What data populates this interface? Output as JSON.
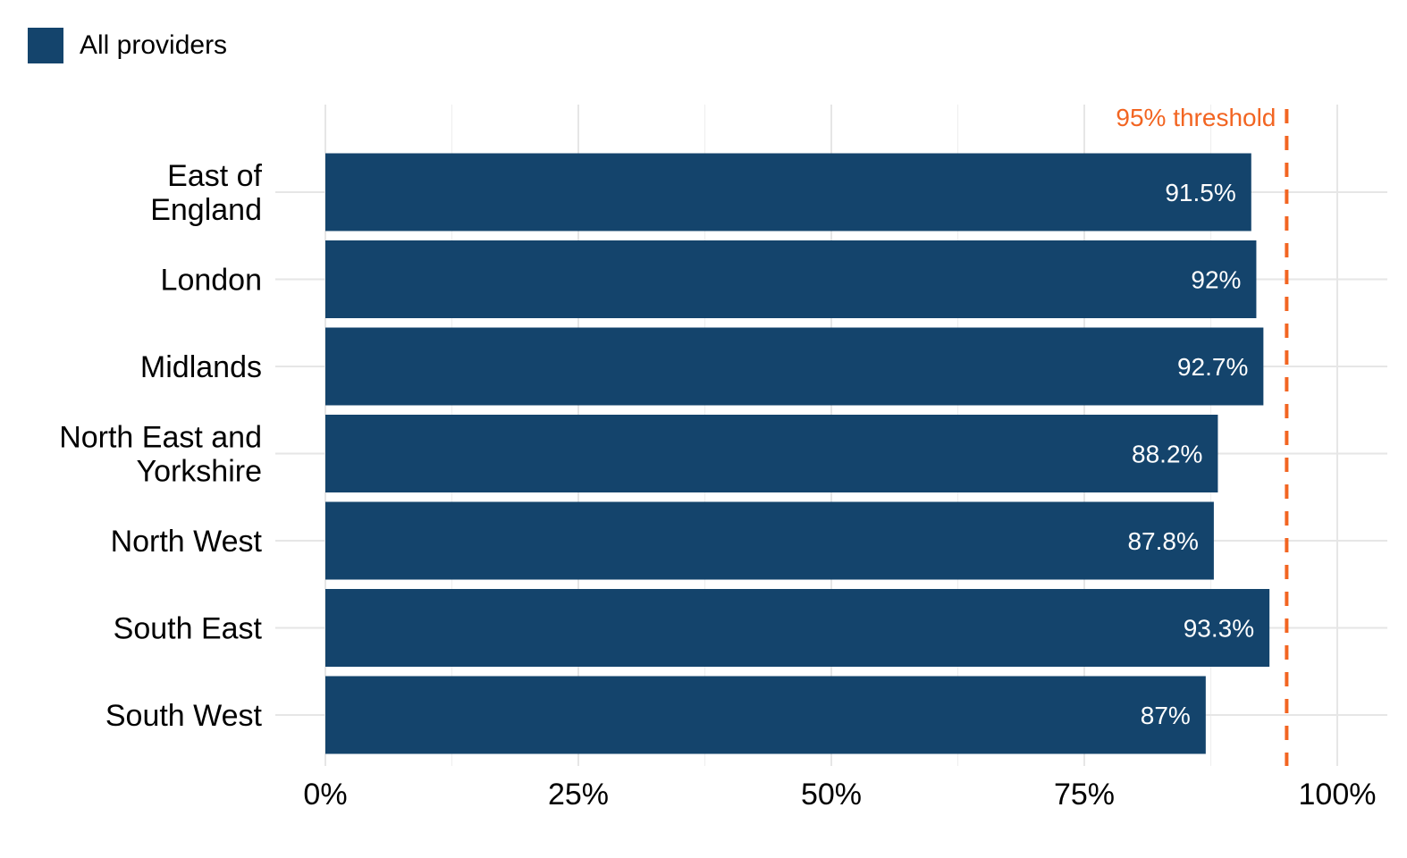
{
  "chart_data": {
    "type": "bar",
    "orientation": "horizontal",
    "categories": [
      "East of England",
      "London",
      "Midlands",
      "North East and Yorkshire",
      "North West",
      "South East",
      "South West"
    ],
    "category_lines": [
      [
        "East of",
        "England"
      ],
      [
        "London"
      ],
      [
        "Midlands"
      ],
      [
        "North East and",
        "Yorkshire"
      ],
      [
        "North West"
      ],
      [
        "South East"
      ],
      [
        "South West"
      ]
    ],
    "series": [
      {
        "name": "All providers",
        "values": [
          91.5,
          92,
          92.7,
          88.2,
          87.8,
          93.3,
          87
        ],
        "labels": [
          "91.5%",
          "92%",
          "92.7%",
          "88.2%",
          "87.8%",
          "93.3%",
          "87%"
        ],
        "color": "#14446c"
      }
    ],
    "xlim": [
      0,
      100
    ],
    "x_ticks": [
      0,
      25,
      50,
      75,
      100
    ],
    "x_tick_labels": [
      "0%",
      "25%",
      "50%",
      "75%",
      "100%"
    ],
    "reference_line": {
      "value": 95,
      "label": "95% threshold",
      "color": "#f26522",
      "style": "dashed"
    },
    "grid": true,
    "legend_position": "top-left",
    "title": "",
    "xlabel": "",
    "ylabel": ""
  }
}
